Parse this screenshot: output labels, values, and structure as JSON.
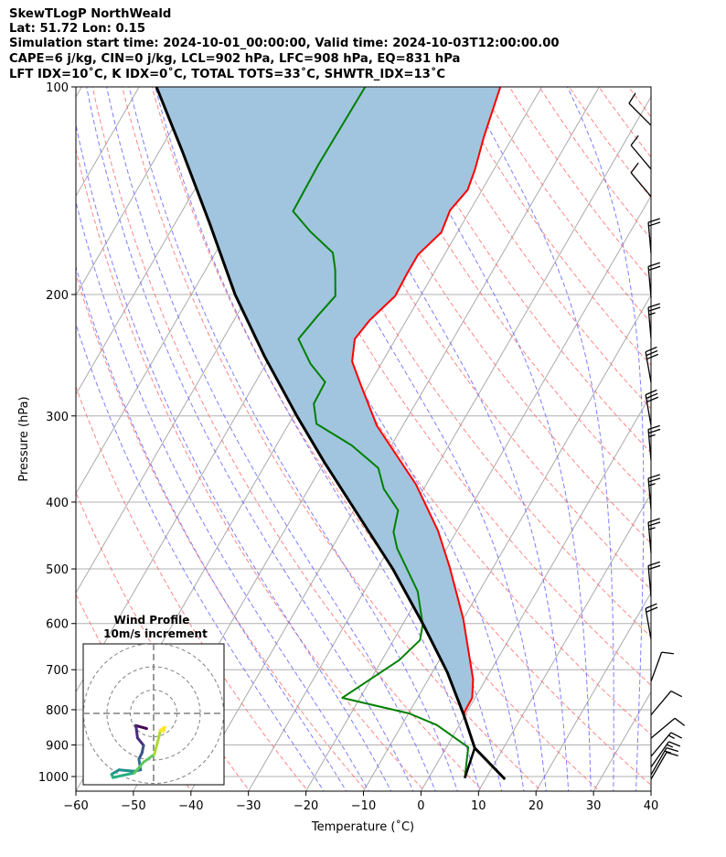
{
  "header": {
    "line1": "SkewTLogP NorthWeald",
    "line2": "Lat: 51.72   Lon: 0.15",
    "line3": "Simulation start time: 2024-10-01_00:00:00, Valid time: 2024-10-03T12:00:00.00",
    "line4": "CAPE=6 j/kg, CIN=0 j/kg, LCL=902 hPa, LFC=908 hPa, EQ=831 hPa",
    "line5": "LFT IDX=10˚C, K IDX=0˚C, TOTAL TOTS=33˚C, SHWTR_IDX=13˚C"
  },
  "colors": {
    "temperature": "#ff0000",
    "dewpoint": "#008000",
    "parcel": "#000000",
    "cape_fill": "#a1c5de",
    "isotherm": "#aaaaaa",
    "dry_adiabat": "#ff6666",
    "moist_adiabat": "#6666ff",
    "isobar": "#b0b0b0"
  },
  "chart_data": {
    "type": "skewt",
    "xlabel": "Temperature (˚C)",
    "ylabel": "Pressure (hPa)",
    "xlim": [
      -60,
      40
    ],
    "ylim": [
      1050,
      100
    ],
    "xticks": [
      -60,
      -50,
      -40,
      -30,
      -20,
      -10,
      0,
      10,
      20,
      30,
      40
    ],
    "xtick_labels": [
      "−60",
      "−50",
      "−40",
      "−30",
      "−20",
      "−10",
      "0",
      "10",
      "20",
      "30",
      "40"
    ],
    "yticks": [
      1000,
      900,
      800,
      700,
      600,
      500,
      400,
      300,
      200,
      100
    ],
    "ytick_labels": [
      "1000",
      "900",
      "800",
      "700",
      "600",
      "500",
      "400",
      "300",
      "200",
      "100"
    ],
    "grid": true,
    "temperature": {
      "p": [
        1009,
        909,
        810,
        769,
        723,
        591,
        497,
        440,
        377,
        310,
        270,
        250,
        232,
        218,
        201,
        187,
        175,
        162.5,
        151,
        141,
        131.6,
        118.3,
        100
      ],
      "T": [
        13.4,
        5.0,
        -0.4,
        -0.5,
        -2.2,
        -10.0,
        -17.6,
        -23.3,
        -31.8,
        -44.5,
        -51.5,
        -55.3,
        -57.1,
        -56.4,
        -54.4,
        -54.6,
        -54.6,
        -52.8,
        -53.5,
        -52.5,
        -53.3,
        -55.0,
        -57.2
      ]
    },
    "dewpoint": {
      "p": [
        1005,
        907,
        842,
        810,
        769,
        678,
        634,
        602,
        539,
        467,
        442,
        411,
        383,
        357,
        331,
        308,
        288,
        268,
        252,
        232,
        215,
        201,
        184,
        174,
        162,
        151.5,
        129.6,
        100
      ],
      "T": [
        6.3,
        3.8,
        -3.9,
        -9.9,
        -23.1,
        -17.0,
        -15.4,
        -16.5,
        -20.7,
        -28.6,
        -30.9,
        -32.3,
        -36.9,
        -40.0,
        -46.9,
        -55.2,
        -57.7,
        -57.9,
        -62.3,
        -66.9,
        -65.9,
        -64.8,
        -67.5,
        -69.6,
        -75.7,
        -80.7,
        -81.0,
        -80.7
      ]
    },
    "parcel": {
      "p": [
        1009,
        909,
        815,
        706,
        600,
        500,
        400,
        350,
        300,
        246,
        200,
        158,
        124,
        100
      ],
      "T": [
        13.4,
        5.0,
        -0.2,
        -7.4,
        -16.6,
        -27.3,
        -41.5,
        -50.0,
        -59.4,
        -71.0,
        -82.4,
        -93.9,
        -106,
        -117
      ]
    },
    "lcl_segment": {
      "p": [
        909,
        1005
      ],
      "T": [
        5.0,
        6.3
      ]
    },
    "wind_barbs": [
      {
        "p": 113.7,
        "dir": 315,
        "kt": 10
      },
      {
        "p": 131.6,
        "dir": 320,
        "kt": 10
      },
      {
        "p": 144.2,
        "dir": 320,
        "kt": 10
      },
      {
        "p": 174.3,
        "dir": 355,
        "kt": 20
      },
      {
        "p": 202,
        "dir": 355,
        "kt": 20
      },
      {
        "p": 231.6,
        "dir": 355,
        "kt": 25
      },
      {
        "p": 268.3,
        "dir": 350,
        "kt": 30
      },
      {
        "p": 309.6,
        "dir": 350,
        "kt": 30
      },
      {
        "p": 348,
        "dir": 355,
        "kt": 25
      },
      {
        "p": 409.7,
        "dir": 355,
        "kt": 25
      },
      {
        "p": 474.4,
        "dir": 355,
        "kt": 25
      },
      {
        "p": 548.5,
        "dir": 355,
        "kt": 20
      },
      {
        "p": 632,
        "dir": 350,
        "kt": 20
      },
      {
        "p": 728,
        "dir": 20,
        "kt": 10
      },
      {
        "p": 814,
        "dir": 40,
        "kt": 10
      },
      {
        "p": 880,
        "dir": 50,
        "kt": 10
      },
      {
        "p": 935,
        "dir": 40,
        "kt": 15
      },
      {
        "p": 969,
        "dir": 35,
        "kt": 15
      },
      {
        "p": 994,
        "dir": 30,
        "kt": 15
      },
      {
        "p": 1009,
        "dir": 30,
        "kt": 10
      }
    ],
    "hodograph": {
      "title": "Wind Profile",
      "subtitle": "10m/s increment",
      "ring_increment_ms": 10,
      "rings": 3,
      "u": [
        -3.0,
        -7.6,
        -6.9,
        -4.3,
        -5.0,
        -6.3,
        -5.6,
        -8.2,
        -14.8,
        -18.0,
        -17.4,
        -8.2,
        -4.3,
        0.3,
        2.2,
        2.9,
        4.8,
        4.2
      ],
      "v": [
        -6.5,
        -5.2,
        -10.5,
        -13.7,
        -17.0,
        -19.6,
        -24.2,
        -24.8,
        -24.2,
        -26.1,
        -27.5,
        -25.5,
        -20.9,
        -17.6,
        -10.5,
        -7.2,
        -5.9,
        -7.8
      ]
    }
  }
}
